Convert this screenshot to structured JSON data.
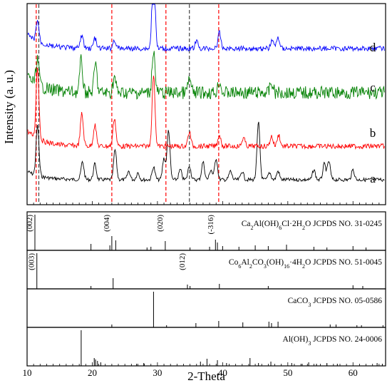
{
  "chart_data": [
    {
      "type": "line",
      "panel": "top",
      "ylabel": "Intensity (a. u.)",
      "xlim": [
        10,
        65
      ],
      "y_ticks_shown": false,
      "series": [
        {
          "name": "a",
          "color": "#000000",
          "peaks": [
            [
              11.6,
              70
            ],
            [
              18.5,
              25
            ],
            [
              20.4,
              22
            ],
            [
              23.5,
              42
            ],
            [
              25.6,
              12
            ],
            [
              27.0,
              10
            ],
            [
              29.4,
              18
            ],
            [
              31.0,
              30
            ],
            [
              31.7,
              70
            ],
            [
              33.5,
              14
            ],
            [
              34.9,
              20
            ],
            [
              37.0,
              25
            ],
            [
              38.2,
              14
            ],
            [
              39.0,
              30
            ],
            [
              41.2,
              12
            ],
            [
              43.0,
              12
            ],
            [
              45.5,
              80
            ],
            [
              47.2,
              10
            ],
            [
              48.5,
              12
            ],
            [
              54.0,
              14
            ],
            [
              55.6,
              22
            ],
            [
              56.3,
              26
            ],
            [
              60.0,
              14
            ]
          ]
        },
        {
          "name": "b",
          "color": "#ff0000",
          "peaks": [
            [
              11.6,
              100
            ],
            [
              18.4,
              45
            ],
            [
              20.4,
              30
            ],
            [
              23.4,
              40
            ],
            [
              29.4,
              100
            ],
            [
              34.9,
              20
            ],
            [
              39.5,
              16
            ],
            [
              43.2,
              12
            ],
            [
              47.5,
              14
            ],
            [
              48.6,
              16
            ]
          ]
        },
        {
          "name": "c",
          "color": "#008000",
          "peaks": [
            [
              11.6,
              35
            ],
            [
              18.3,
              45
            ],
            [
              20.5,
              40
            ],
            [
              23.4,
              22
            ],
            [
              29.4,
              60
            ],
            [
              34.9,
              20
            ],
            [
              39.5,
              16
            ],
            [
              47.5,
              14
            ]
          ]
        },
        {
          "name": "d",
          "color": "#0000ff",
          "peaks": [
            [
              11.6,
              30
            ],
            [
              18.4,
              18
            ],
            [
              20.4,
              14
            ],
            [
              23.4,
              12
            ],
            [
              29.4,
              130
            ],
            [
              36.0,
              10
            ],
            [
              39.5,
              22
            ],
            [
              47.6,
              12
            ],
            [
              48.5,
              16
            ]
          ]
        }
      ],
      "reference_lines": [
        {
          "x": 11.4,
          "color": "#ff0000"
        },
        {
          "x": 11.8,
          "color": "#444444"
        },
        {
          "x": 23.0,
          "color": "#ff0000"
        },
        {
          "x": 31.3,
          "color": "#ff0000"
        },
        {
          "x": 34.9,
          "color": "#444444"
        },
        {
          "x": 39.4,
          "color": "#ff0000"
        }
      ]
    },
    {
      "type": "bar",
      "panel": "references",
      "xlabel": "2-Theta",
      "xlim": [
        10,
        65
      ],
      "x_ticks": [
        10,
        20,
        30,
        40,
        50,
        60
      ],
      "panels": [
        {
          "label": "Ca₂Al(OH)₆Cl·2H₂O  JCPDS NO. 31-0245",
          "label_main": "Ca",
          "label_parts": [
            [
              "Ca",
              ""
            ],
            [
              "2",
              "sub"
            ],
            [
              "Al(OH)",
              ""
            ],
            [
              "6",
              "sub"
            ],
            [
              "Cl·2H",
              ""
            ],
            [
              "2",
              "sub"
            ],
            [
              "O  JCPDS NO. 31-0245",
              ""
            ]
          ],
          "peaks": [
            [
              11.2,
              100
            ],
            [
              19.8,
              18
            ],
            [
              22.7,
              14
            ],
            [
              23.0,
              40
            ],
            [
              23.6,
              28
            ],
            [
              28.4,
              8
            ],
            [
              29.0,
              10
            ],
            [
              31.2,
              26
            ],
            [
              35.0,
              8
            ],
            [
              38.0,
              10
            ],
            [
              38.9,
              30
            ],
            [
              39.2,
              22
            ],
            [
              40.0,
              12
            ],
            [
              42.5,
              10
            ],
            [
              45.0,
              14
            ],
            [
              47.0,
              12
            ],
            [
              49.8,
              16
            ],
            [
              54.0,
              10
            ],
            [
              56.0,
              8
            ],
            [
              60.0,
              12
            ],
            [
              62.0,
              8
            ]
          ],
          "annotations": [
            {
              "x": 11.2,
              "text": "(002)"
            },
            {
              "x": 23.0,
              "text": "(004)"
            },
            {
              "x": 31.2,
              "text": "(020)"
            },
            {
              "x": 39.0,
              "text": "(-316)"
            }
          ]
        },
        {
          "label": "Co₆Al₂CO₃(OH)₁₆·4H₂O  JCPDS NO. 51-0045",
          "label_parts": [
            [
              "Co",
              ""
            ],
            [
              "6",
              "sub"
            ],
            [
              "Al",
              ""
            ],
            [
              "2",
              "sub"
            ],
            [
              "CO",
              ""
            ],
            [
              "3",
              "sub"
            ],
            [
              "(OH)",
              ""
            ],
            [
              "16",
              "sub"
            ],
            [
              "·4H",
              ""
            ],
            [
              "2",
              "sub"
            ],
            [
              "O  JCPDS NO. 51-0045",
              ""
            ]
          ],
          "peaks": [
            [
              11.5,
              100
            ],
            [
              19.8,
              8
            ],
            [
              23.2,
              30
            ],
            [
              34.6,
              12
            ],
            [
              35.0,
              8
            ],
            [
              39.5,
              14
            ],
            [
              47.0,
              8
            ],
            [
              60.0,
              10
            ],
            [
              61.5,
              8
            ]
          ],
          "annotations": [
            {
              "x": 11.5,
              "text": "(003)"
            },
            {
              "x": 34.6,
              "text": "(012)"
            }
          ]
        },
        {
          "label": "CaCO₃  JCPDS NO. 05-0586",
          "label_parts": [
            [
              "CaCO",
              ""
            ],
            [
              "3",
              "sub"
            ],
            [
              "  JCPDS NO. 05-0586",
              ""
            ]
          ],
          "peaks": [
            [
              23.0,
              8
            ],
            [
              29.4,
              100
            ],
            [
              31.4,
              6
            ],
            [
              35.9,
              12
            ],
            [
              39.4,
              18
            ],
            [
              43.1,
              14
            ],
            [
              47.1,
              16
            ],
            [
              47.5,
              12
            ],
            [
              48.5,
              16
            ],
            [
              56.5,
              8
            ],
            [
              57.4,
              8
            ],
            [
              60.6,
              6
            ],
            [
              61.3,
              6
            ],
            [
              64.6,
              6
            ]
          ],
          "annotations": []
        },
        {
          "label": "Al(OH)₃  JCPDS NO. 24-0006",
          "label_parts": [
            [
              "Al(OH)",
              ""
            ],
            [
              "3",
              "sub"
            ],
            [
              "  JCPDS NO. 24-0006",
              ""
            ]
          ],
          "peaks": [
            [
              18.3,
              100
            ],
            [
              20.3,
              22
            ],
            [
              20.5,
              18
            ],
            [
              20.8,
              14
            ],
            [
              21.3,
              10
            ],
            [
              26.8,
              6
            ],
            [
              27.9,
              8
            ],
            [
              36.6,
              12
            ],
            [
              37.6,
              20
            ],
            [
              39.2,
              16
            ],
            [
              40.6,
              8
            ],
            [
              44.2,
              22
            ],
            [
              45.5,
              8
            ],
            [
              47.4,
              12
            ],
            [
              50.6,
              8
            ],
            [
              52.2,
              6
            ],
            [
              53.2,
              10
            ],
            [
              54.4,
              6
            ],
            [
              56.0,
              8
            ],
            [
              57.6,
              6
            ],
            [
              63.7,
              8
            ],
            [
              64.5,
              6
            ]
          ],
          "annotations": []
        }
      ]
    }
  ]
}
